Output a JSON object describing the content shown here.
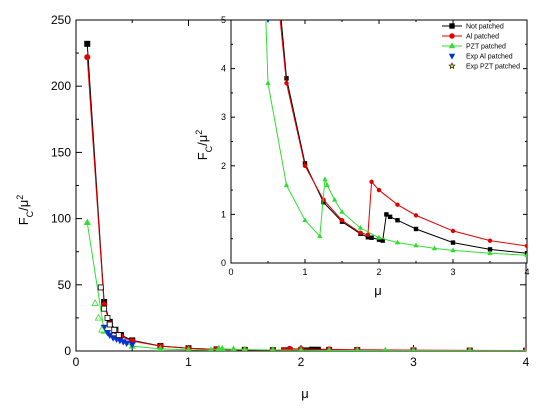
{
  "chart_data": [
    {
      "type": "line",
      "ylabel": "F_C/μ^2",
      "xlabel": "μ",
      "xlim": [
        0,
        4
      ],
      "ylim": [
        0,
        250
      ],
      "x_ticks": [
        "0",
        "1",
        "2",
        "3",
        "4"
      ],
      "y_ticks": [
        "0",
        "50",
        "100",
        "150",
        "200",
        "250"
      ],
      "series": [
        {
          "name": "Not patched",
          "color": "#000000",
          "marker": "square",
          "x": [
            0.1,
            0.25,
            0.3,
            0.35,
            0.4,
            0.5,
            0.75,
            1.0,
            1.25,
            1.5,
            1.75,
            1.85,
            1.9,
            2.0,
            2.05,
            2.1,
            2.15,
            2.25,
            2.5,
            3.0,
            3.5,
            4.0
          ],
          "y": [
            232,
            37,
            22,
            16,
            12,
            8,
            3.8,
            2.05,
            1.25,
            0.85,
            0.6,
            0.53,
            0.52,
            0.48,
            0.46,
            1.0,
            0.95,
            0.88,
            0.7,
            0.42,
            0.28,
            0.2
          ]
        },
        {
          "name": "Al patched",
          "color": "#e00000",
          "marker": "circle",
          "x": [
            0.1,
            0.25,
            0.3,
            0.35,
            0.4,
            0.5,
            0.75,
            1.0,
            1.25,
            1.5,
            1.75,
            1.85,
            1.9,
            2.0,
            2.25,
            2.5,
            3.0,
            3.5,
            4.0
          ],
          "y": [
            222,
            35,
            21,
            15,
            11,
            7.5,
            3.7,
            2.0,
            1.3,
            0.88,
            0.62,
            0.58,
            1.67,
            1.5,
            1.2,
            0.98,
            0.66,
            0.46,
            0.35
          ]
        },
        {
          "name": "PZT patched",
          "color": "#33dd33",
          "marker": "triangle",
          "x": [
            0.1,
            0.25,
            0.5,
            0.75,
            1.0,
            1.2,
            1.27,
            1.3,
            1.4,
            1.5,
            1.75,
            2.0,
            2.25,
            2.5,
            2.75,
            3.0,
            3.5,
            4.0
          ],
          "y": [
            97,
            15,
            3.7,
            1.6,
            0.88,
            0.55,
            1.72,
            1.6,
            1.3,
            1.05,
            0.72,
            0.52,
            0.42,
            0.36,
            0.3,
            0.26,
            0.2,
            0.16
          ]
        },
        {
          "name": "Exp Al patched",
          "color": "#0033cc",
          "marker": "triangle-down",
          "x": [
            0.25,
            0.28,
            0.3,
            0.33,
            0.36,
            0.39,
            0.42,
            0.45,
            0.5
          ],
          "y": [
            18,
            14,
            12,
            10,
            9,
            8,
            7,
            6,
            5
          ]
        },
        {
          "name": "Exp PZT patched",
          "color": "#ffee00",
          "marker": "star",
          "x": [],
          "y": []
        }
      ],
      "open_markers": {
        "square": {
          "x": [
            0.22,
            0.25,
            0.28,
            0.3,
            0.34,
            0.38
          ],
          "y": [
            48,
            32,
            25,
            20,
            16,
            12
          ]
        },
        "triangle": {
          "x": [
            0.17,
            0.2,
            0.23
          ],
          "y": [
            36,
            25,
            16
          ]
        }
      }
    },
    {
      "type": "line",
      "inset": true,
      "ylabel": "F_C/μ^2",
      "xlabel": "μ",
      "xlim": [
        0,
        4
      ],
      "ylim": [
        0,
        5
      ],
      "x_ticks": [
        "0",
        "1",
        "2",
        "3",
        "4"
      ],
      "y_ticks": [
        "0",
        "1",
        "2",
        "3",
        "4",
        "5"
      ],
      "legend": "top-right"
    }
  ]
}
